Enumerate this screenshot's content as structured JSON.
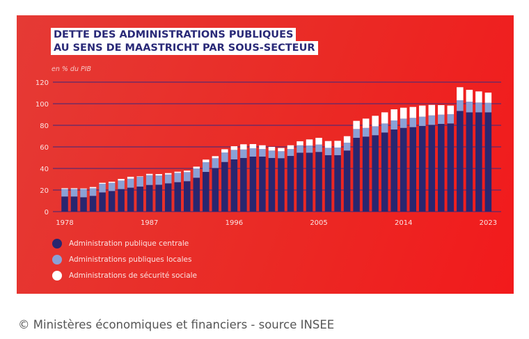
{
  "chart_data": {
    "type": "bar",
    "stacked": true,
    "title": "DETTE DES ADMINISTRATIONS PUBLIQUES AU SENS DE MAASTRICHT PAR SOUS-SECTEUR",
    "title_lines": [
      "DETTE DES ADMINISTRATIONS PUBLIQUES",
      "AU SENS DE MAASTRICHT PAR SOUS-SECTEUR"
    ],
    "ylabel": "en % du PIB",
    "ylim": [
      0,
      120
    ],
    "yticks": [
      0,
      20,
      40,
      60,
      80,
      100,
      120
    ],
    "xtick_labels": [
      "1978",
      "1987",
      "1996",
      "2005",
      "2014",
      "2023"
    ],
    "grid": true,
    "legend_position": "bottom-left",
    "categories": [
      1978,
      1979,
      1980,
      1981,
      1982,
      1983,
      1984,
      1985,
      1986,
      1987,
      1988,
      1989,
      1990,
      1991,
      1992,
      1993,
      1994,
      1995,
      1996,
      1997,
      1998,
      1999,
      2000,
      2001,
      2002,
      2003,
      2004,
      2005,
      2006,
      2007,
      2008,
      2009,
      2010,
      2011,
      2012,
      2013,
      2014,
      2015,
      2016,
      2017,
      2018,
      2019,
      2020,
      2021,
      2022,
      2023
    ],
    "series": [
      {
        "name": "Administration publique centrale",
        "color": "#29266f",
        "values": [
          14.0,
          14.0,
          13.3,
          14.6,
          17.8,
          19.1,
          20.9,
          22.2,
          23.2,
          24.7,
          24.9,
          26.2,
          27.3,
          28.2,
          31.4,
          36.8,
          40.4,
          46.0,
          48.4,
          49.7,
          51.0,
          51.0,
          49.7,
          49.5,
          51.6,
          54.6,
          54.6,
          55.3,
          52.3,
          52.3,
          56.6,
          68.4,
          69.5,
          70.8,
          73.3,
          76.1,
          77.6,
          78.3,
          79.4,
          80.4,
          81.3,
          81.7,
          93.3,
          92.0,
          92.0,
          92.0
        ]
      },
      {
        "name": "Administrations publiques locales",
        "color": "#8aa1d6",
        "values": [
          7.0,
          7.0,
          7.7,
          7.1,
          8.0,
          7.6,
          7.9,
          8.3,
          9.1,
          9.1,
          8.6,
          8.2,
          8.6,
          8.4,
          8.6,
          9.0,
          9.1,
          8.8,
          8.8,
          7.9,
          7.7,
          7.0,
          6.9,
          6.5,
          6.4,
          6.9,
          6.7,
          6.9,
          6.8,
          7.1,
          7.3,
          8.2,
          8.1,
          8.3,
          8.4,
          8.4,
          8.6,
          8.6,
          8.6,
          8.8,
          8.6,
          8.6,
          9.9,
          9.9,
          9.1,
          8.9
        ]
      },
      {
        "name": "Administrations de sécurité sociale",
        "color": "#ffffff",
        "values": [
          0.7,
          0.7,
          0.5,
          1.1,
          0.9,
          1.0,
          1.5,
          1.8,
          0.4,
          1.2,
          1.3,
          1.3,
          1.1,
          1.4,
          1.7,
          2.4,
          1.9,
          3.0,
          3.4,
          4.8,
          3.9,
          3.5,
          3.4,
          3.0,
          3.5,
          3.7,
          5.6,
          6.2,
          6.3,
          6.2,
          6.0,
          7.5,
          8.6,
          9.7,
          10.3,
          10.3,
          10.1,
          10.1,
          10.3,
          9.7,
          8.8,
          8.0,
          12.1,
          11.0,
          10.3,
          9.4
        ]
      }
    ]
  },
  "caption": "© Ministères économiques et financiers - source INSEE"
}
